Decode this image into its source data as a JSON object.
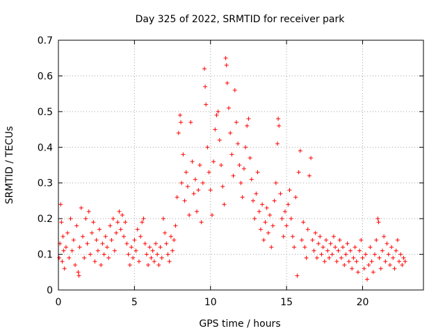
{
  "chart_data": {
    "type": "scatter",
    "title": "Day 325 of 2022, SRMTID for receiver park",
    "xlabel": "GPS time / hours",
    "ylabel": "SRMTID / TECUs",
    "xlim": [
      0,
      24
    ],
    "ylim": [
      0,
      0.7
    ],
    "xticks": [
      0,
      5,
      10,
      15,
      20
    ],
    "yticks": [
      0,
      0.1,
      0.2,
      0.3,
      0.4,
      0.5,
      0.6,
      0.7
    ],
    "xtick_labels": [
      "0",
      "5",
      "10",
      "15",
      "20"
    ],
    "ytick_labels": [
      "0",
      "0.1",
      "0.2",
      "0.3",
      "0.4",
      "0.5",
      "0.6",
      "0.7"
    ],
    "grid": true,
    "marker": "+",
    "color": "#ff0000",
    "series": [
      {
        "name": "SRMTID",
        "points": [
          [
            0.05,
            0.09
          ],
          [
            0.1,
            0.13
          ],
          [
            0.15,
            0.24
          ],
          [
            0.2,
            0.19
          ],
          [
            0.25,
            0.08
          ],
          [
            0.3,
            0.15
          ],
          [
            0.35,
            0.11
          ],
          [
            0.4,
            0.06
          ],
          [
            0.5,
            0.12
          ],
          [
            0.6,
            0.16
          ],
          [
            0.7,
            0.09
          ],
          [
            0.8,
            0.2
          ],
          [
            0.9,
            0.11
          ],
          [
            1.0,
            0.14
          ],
          [
            1.1,
            0.07
          ],
          [
            1.2,
            0.18
          ],
          [
            1.3,
            0.05
          ],
          [
            1.35,
            0.04
          ],
          [
            1.4,
            0.12
          ],
          [
            1.5,
            0.23
          ],
          [
            1.6,
            0.15
          ],
          [
            1.7,
            0.09
          ],
          [
            1.8,
            0.2
          ],
          [
            1.9,
            0.13
          ],
          [
            2.0,
            0.22
          ],
          [
            2.1,
            0.1
          ],
          [
            2.2,
            0.16
          ],
          [
            2.3,
            0.19
          ],
          [
            2.4,
            0.08
          ],
          [
            2.5,
            0.14
          ],
          [
            2.6,
            0.11
          ],
          [
            2.7,
            0.17
          ],
          [
            2.8,
            0.07
          ],
          [
            2.9,
            0.13
          ],
          [
            3.0,
            0.1
          ],
          [
            3.1,
            0.15
          ],
          [
            3.2,
            0.12
          ],
          [
            3.3,
            0.09
          ],
          [
            3.4,
            0.18
          ],
          [
            3.5,
            0.14
          ],
          [
            3.6,
            0.2
          ],
          [
            3.7,
            0.11
          ],
          [
            3.8,
            0.16
          ],
          [
            3.9,
            0.19
          ],
          [
            4.0,
            0.22
          ],
          [
            4.1,
            0.17
          ],
          [
            4.2,
            0.21
          ],
          [
            4.3,
            0.15
          ],
          [
            4.4,
            0.19
          ],
          [
            4.5,
            0.13
          ],
          [
            4.6,
            0.1
          ],
          [
            4.7,
            0.07
          ],
          [
            4.8,
            0.12
          ],
          [
            4.9,
            0.09
          ],
          [
            5.0,
            0.14
          ],
          [
            5.1,
            0.11
          ],
          [
            5.2,
            0.17
          ],
          [
            5.3,
            0.08
          ],
          [
            5.4,
            0.15
          ],
          [
            5.5,
            0.19
          ],
          [
            5.6,
            0.2
          ],
          [
            5.7,
            0.13
          ],
          [
            5.8,
            0.1
          ],
          [
            5.9,
            0.07
          ],
          [
            6.0,
            0.12
          ],
          [
            6.1,
            0.09
          ],
          [
            6.2,
            0.11
          ],
          [
            6.3,
            0.08
          ],
          [
            6.4,
            0.13
          ],
          [
            6.5,
            0.1
          ],
          [
            6.6,
            0.07
          ],
          [
            6.7,
            0.12
          ],
          [
            6.8,
            0.09
          ],
          [
            6.9,
            0.2
          ],
          [
            7.0,
            0.16
          ],
          [
            7.1,
            0.13
          ],
          [
            7.2,
            0.1
          ],
          [
            7.3,
            0.08
          ],
          [
            7.4,
            0.15
          ],
          [
            7.5,
            0.11
          ],
          [
            7.6,
            0.14
          ],
          [
            7.7,
            0.18
          ],
          [
            7.8,
            0.26
          ],
          [
            7.9,
            0.44
          ],
          [
            8.0,
            0.49
          ],
          [
            8.05,
            0.47
          ],
          [
            8.1,
            0.3
          ],
          [
            8.2,
            0.38
          ],
          [
            8.3,
            0.25
          ],
          [
            8.4,
            0.33
          ],
          [
            8.5,
            0.29
          ],
          [
            8.6,
            0.21
          ],
          [
            8.7,
            0.47
          ],
          [
            8.8,
            0.36
          ],
          [
            8.9,
            0.27
          ],
          [
            9.0,
            0.31
          ],
          [
            9.1,
            0.22
          ],
          [
            9.2,
            0.28
          ],
          [
            9.3,
            0.35
          ],
          [
            9.4,
            0.19
          ],
          [
            9.5,
            0.3
          ],
          [
            9.6,
            0.62
          ],
          [
            9.65,
            0.57
          ],
          [
            9.7,
            0.52
          ],
          [
            9.8,
            0.4
          ],
          [
            9.9,
            0.33
          ],
          [
            10.0,
            0.28
          ],
          [
            10.1,
            0.21
          ],
          [
            10.2,
            0.36
          ],
          [
            10.3,
            0.45
          ],
          [
            10.4,
            0.49
          ],
          [
            10.5,
            0.5
          ],
          [
            10.6,
            0.42
          ],
          [
            10.7,
            0.35
          ],
          [
            10.8,
            0.29
          ],
          [
            10.9,
            0.24
          ],
          [
            11.0,
            0.65
          ],
          [
            11.05,
            0.63
          ],
          [
            11.1,
            0.58
          ],
          [
            11.2,
            0.51
          ],
          [
            11.3,
            0.44
          ],
          [
            11.4,
            0.38
          ],
          [
            11.5,
            0.32
          ],
          [
            11.6,
            0.56
          ],
          [
            11.7,
            0.47
          ],
          [
            11.8,
            0.41
          ],
          [
            11.9,
            0.35
          ],
          [
            12.0,
            0.3
          ],
          [
            12.1,
            0.26
          ],
          [
            12.2,
            0.34
          ],
          [
            12.3,
            0.4
          ],
          [
            12.4,
            0.46
          ],
          [
            12.5,
            0.48
          ],
          [
            12.6,
            0.37
          ],
          [
            12.7,
            0.31
          ],
          [
            12.8,
            0.25
          ],
          [
            12.9,
            0.2
          ],
          [
            13.0,
            0.27
          ],
          [
            13.1,
            0.33
          ],
          [
            13.2,
            0.22
          ],
          [
            13.3,
            0.17
          ],
          [
            13.4,
            0.24
          ],
          [
            13.5,
            0.14
          ],
          [
            13.6,
            0.19
          ],
          [
            13.7,
            0.23
          ],
          [
            13.8,
            0.16
          ],
          [
            13.9,
            0.21
          ],
          [
            14.0,
            0.12
          ],
          [
            14.1,
            0.18
          ],
          [
            14.2,
            0.25
          ],
          [
            14.3,
            0.3
          ],
          [
            14.4,
            0.41
          ],
          [
            14.45,
            0.48
          ],
          [
            14.5,
            0.46
          ],
          [
            14.6,
            0.27
          ],
          [
            14.7,
            0.2
          ],
          [
            14.8,
            0.15
          ],
          [
            14.9,
            0.22
          ],
          [
            15.0,
            0.18
          ],
          [
            15.1,
            0.24
          ],
          [
            15.2,
            0.28
          ],
          [
            15.3,
            0.2
          ],
          [
            15.4,
            0.15
          ],
          [
            15.5,
            0.12
          ],
          [
            15.6,
            0.26
          ],
          [
            15.7,
            0.04
          ],
          [
            15.8,
            0.33
          ],
          [
            15.9,
            0.39
          ],
          [
            16.0,
            0.14
          ],
          [
            16.1,
            0.19
          ],
          [
            16.2,
            0.12
          ],
          [
            16.3,
            0.09
          ],
          [
            16.4,
            0.17
          ],
          [
            16.5,
            0.32
          ],
          [
            16.6,
            0.37
          ],
          [
            16.7,
            0.14
          ],
          [
            16.8,
            0.11
          ],
          [
            16.9,
            0.16
          ],
          [
            17.0,
            0.09
          ],
          [
            17.1,
            0.13
          ],
          [
            17.2,
            0.15
          ],
          [
            17.3,
            0.1
          ],
          [
            17.4,
            0.12
          ],
          [
            17.5,
            0.08
          ],
          [
            17.6,
            0.14
          ],
          [
            17.7,
            0.11
          ],
          [
            17.8,
            0.09
          ],
          [
            17.9,
            0.13
          ],
          [
            18.0,
            0.1
          ],
          [
            18.1,
            0.15
          ],
          [
            18.2,
            0.12
          ],
          [
            18.3,
            0.08
          ],
          [
            18.4,
            0.11
          ],
          [
            18.5,
            0.14
          ],
          [
            18.6,
            0.09
          ],
          [
            18.7,
            0.12
          ],
          [
            18.8,
            0.07
          ],
          [
            18.9,
            0.1
          ],
          [
            19.0,
            0.13
          ],
          [
            19.1,
            0.08
          ],
          [
            19.2,
            0.11
          ],
          [
            19.3,
            0.06
          ],
          [
            19.4,
            0.09
          ],
          [
            19.5,
            0.12
          ],
          [
            19.6,
            0.08
          ],
          [
            19.7,
            0.05
          ],
          [
            19.8,
            0.11
          ],
          [
            19.9,
            0.14
          ],
          [
            20.0,
            0.09
          ],
          [
            20.1,
            0.06
          ],
          [
            20.2,
            0.1
          ],
          [
            20.3,
            0.03
          ],
          [
            20.4,
            0.07
          ],
          [
            20.5,
            0.12
          ],
          [
            20.6,
            0.08
          ],
          [
            20.7,
            0.05
          ],
          [
            20.8,
            0.1
          ],
          [
            20.9,
            0.14
          ],
          [
            21.0,
            0.2
          ],
          [
            21.05,
            0.19
          ],
          [
            21.1,
            0.09
          ],
          [
            21.2,
            0.06
          ],
          [
            21.3,
            0.11
          ],
          [
            21.4,
            0.15
          ],
          [
            21.5,
            0.08
          ],
          [
            21.6,
            0.13
          ],
          [
            21.7,
            0.1
          ],
          [
            21.8,
            0.07
          ],
          [
            21.9,
            0.12
          ],
          [
            22.0,
            0.09
          ],
          [
            22.1,
            0.06
          ],
          [
            22.2,
            0.11
          ],
          [
            22.3,
            0.14
          ],
          [
            22.4,
            0.08
          ],
          [
            22.5,
            0.1
          ],
          [
            22.6,
            0.07
          ],
          [
            22.7,
            0.09
          ],
          [
            22.8,
            0.08
          ]
        ]
      }
    ]
  }
}
